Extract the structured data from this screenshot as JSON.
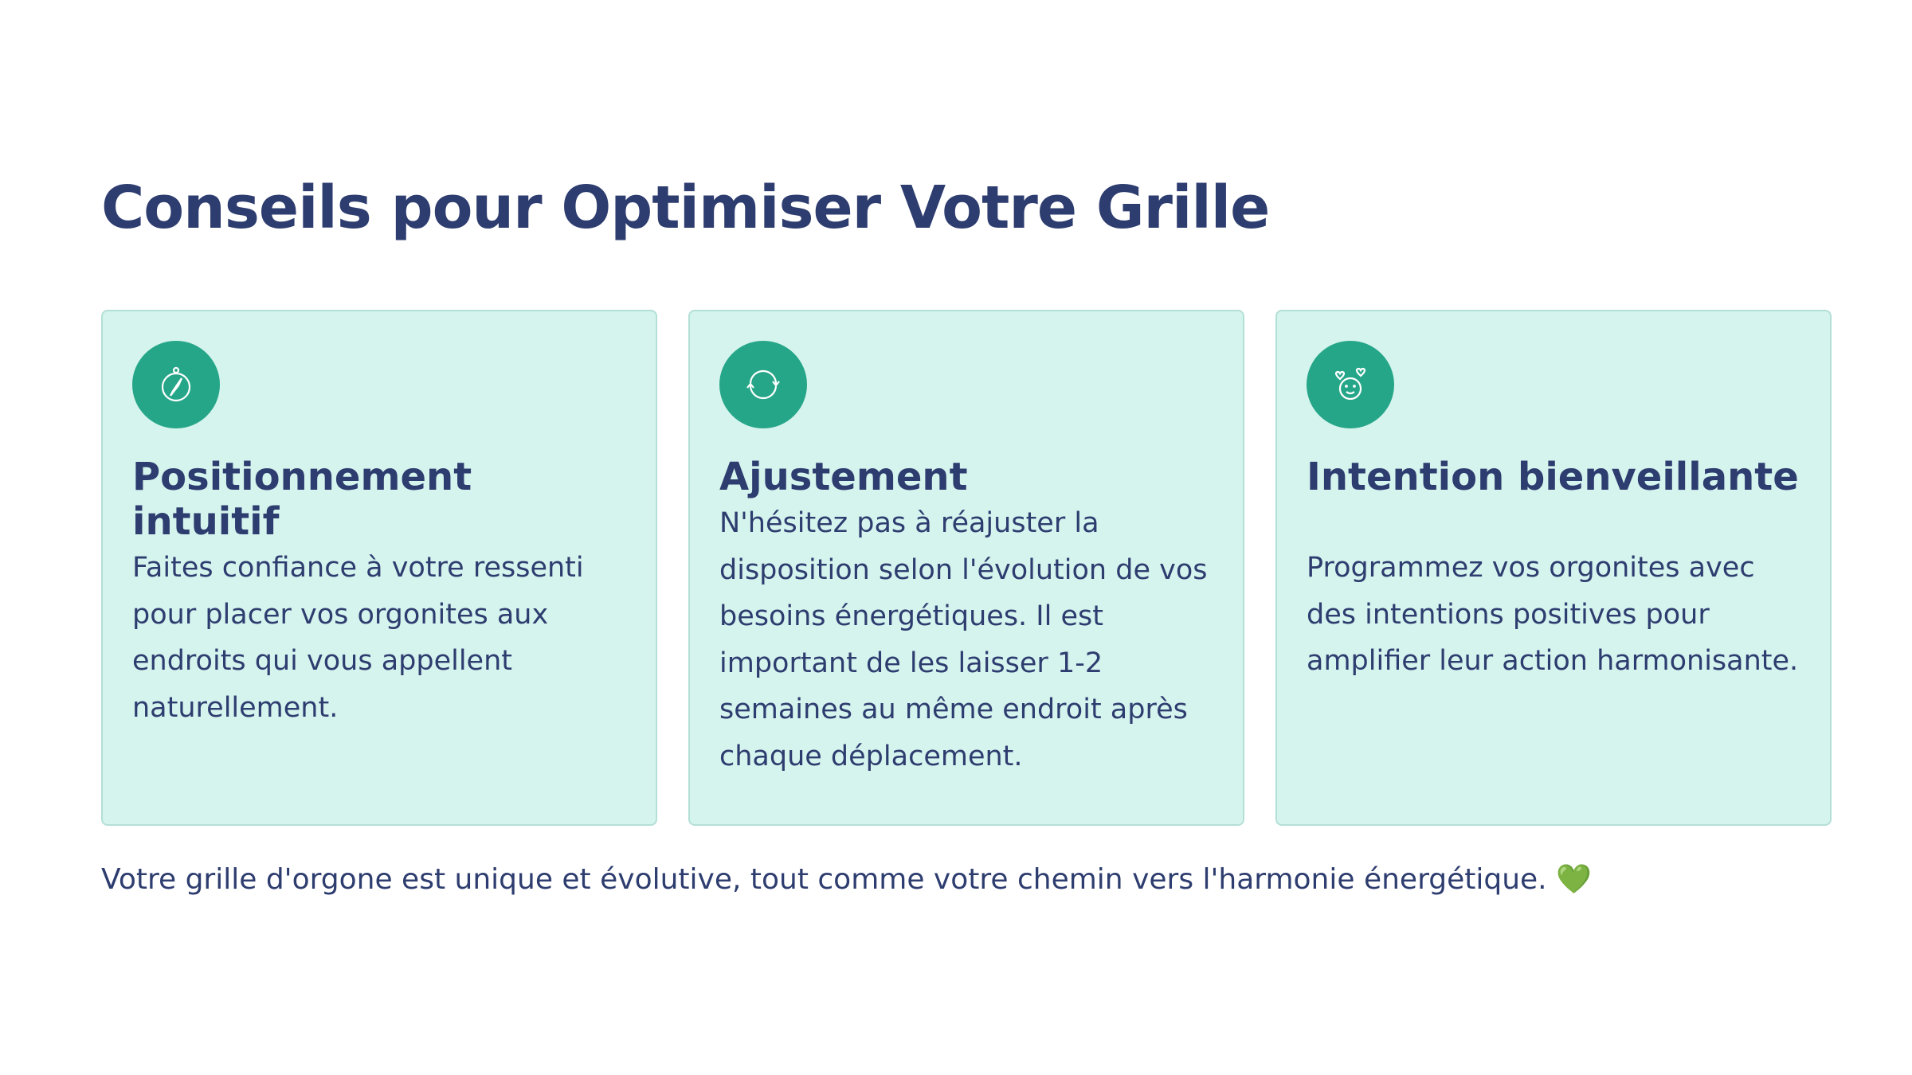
{
  "title": "Conseils pour Optimiser Votre Grille",
  "cards": [
    {
      "icon": "compass-icon",
      "title": "Positionnement intuitif",
      "text": "Faites confiance à votre ressenti pour placer vos orgonites aux endroits qui vous appellent naturellement."
    },
    {
      "icon": "refresh-icon",
      "title": "Ajustement",
      "text": "N'hésitez pas à réajuster la disposition selon l'évolution de vos besoins énergétiques. Il est important de les laisser 1-2 semaines au même endroit après chaque déplacement."
    },
    {
      "icon": "smiley-hearts-icon",
      "title": "Intention bienveillante",
      "text": "Programmez vos orgonites avec des intentions positives pour amplifier leur action harmonisante."
    }
  ],
  "footer": {
    "text": "Votre grille d'orgone est unique et évolutive, tout comme votre chemin vers l'harmonie énergétique.",
    "emoji": "💚"
  },
  "colors": {
    "text": "#2e3d6f",
    "card_bg": "#d5f4ee",
    "accent": "#26a688"
  }
}
